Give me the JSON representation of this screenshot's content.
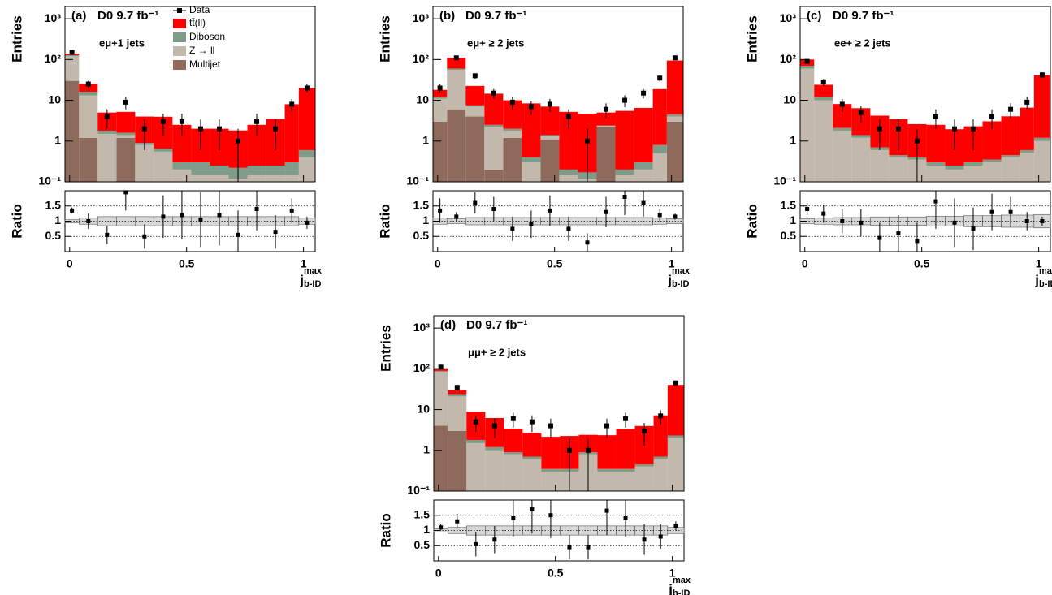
{
  "series_styles": [
    {
      "name": "Multijet",
      "color": "#8d6a5b"
    },
    {
      "name": "Z → ll",
      "color": "#c2b8ab"
    },
    {
      "name": "Diboson",
      "color": "#7f9c8a"
    },
    {
      "name": "tt̄(ll)",
      "color": "#ff0000"
    }
  ],
  "data_label": "Data",
  "chart_data": [
    {
      "type": "stacked_histogram",
      "panel_label": "(a)",
      "title": "D0 9.7 fb⁻¹",
      "channel": "eμ+1 jets",
      "legend": true,
      "ylabel": "Entries",
      "ratio_ylabel": "Ratio",
      "xlabel": {
        "base": "j",
        "sup": "max",
        "sub": "b-ID"
      },
      "log_y": true,
      "xlim": [
        -0.02,
        1.05
      ],
      "xticks": [
        0,
        0.5,
        1
      ],
      "ylim": [
        0.1,
        2000
      ],
      "yticks": [
        {
          "value": 0.1,
          "label": "10⁻¹"
        },
        1,
        10,
        {
          "value": 100,
          "label": "10²"
        },
        {
          "value": 1000,
          "label": "10³"
        }
      ],
      "ratio_ylim": [
        0,
        2
      ],
      "ratio_yticks": [
        0.5,
        1,
        1.5
      ],
      "bins": [
        -0.02,
        0.04,
        0.12,
        0.2,
        0.28,
        0.36,
        0.44,
        0.52,
        0.6,
        0.68,
        0.76,
        0.84,
        0.92,
        0.98,
        1.05
      ],
      "stacks": [
        {
          "values": [
            30,
            1.2,
            0,
            1.2,
            0,
            0,
            0,
            0,
            0,
            0,
            0,
            0,
            0,
            0
          ]
        },
        {
          "values": [
            90,
            12,
            1.5,
            0.2,
            0.8,
            0.55,
            0.2,
            0.15,
            0.15,
            0.12,
            0.15,
            0.15,
            0.15,
            0.4
          ]
        },
        {
          "values": [
            8,
            3,
            0.3,
            0.2,
            0.1,
            0.1,
            0.1,
            0.15,
            0.1,
            0.1,
            0.1,
            0.1,
            0.15,
            0.2
          ]
        },
        {
          "values": [
            12,
            9,
            3.2,
            3.6,
            3.1,
            3.3,
            2.2,
            1.7,
            1.75,
            1.6,
            2.25,
            3.25,
            7.7,
            19.4
          ]
        }
      ],
      "data": [
        150,
        25,
        4,
        9,
        2,
        3,
        3,
        2,
        2,
        1,
        3,
        2,
        8,
        20
      ],
      "data_errors": [
        12,
        5,
        2,
        3,
        1.4,
        1.7,
        1.7,
        1.4,
        1.4,
        1,
        1.7,
        1.4,
        2.8,
        4.5
      ],
      "ratio": [
        1.35,
        1.0,
        0.55,
        1.95,
        0.5,
        1.15,
        1.2,
        1.05,
        1.2,
        0.55,
        1.4,
        0.65,
        1.35,
        0.95
      ],
      "ratio_errors": [
        0.1,
        0.25,
        0.3,
        0.6,
        0.4,
        0.7,
        0.8,
        0.9,
        1.0,
        0.8,
        0.7,
        0.55,
        0.4,
        0.2
      ],
      "ratio_band": [
        0.05,
        0.1,
        0.15,
        0.15,
        0.15,
        0.15,
        0.15,
        0.15,
        0.15,
        0.15,
        0.15,
        0.15,
        0.15,
        0.1
      ]
    },
    {
      "type": "stacked_histogram",
      "panel_label": "(b)",
      "title": "D0 9.7 fb⁻¹",
      "channel": "eμ+ ≥ 2 jets",
      "ylabel": "Entries",
      "ratio_ylabel": "Ratio",
      "xlabel": {
        "base": "j",
        "sup": "max",
        "sub": "b-ID"
      },
      "log_y": true,
      "xlim": [
        -0.02,
        1.05
      ],
      "xticks": [
        0,
        0.5,
        1
      ],
      "ylim": [
        0.1,
        2000
      ],
      "yticks": [
        {
          "value": 0.1,
          "label": "10⁻¹"
        },
        1,
        10,
        {
          "value": 100,
          "label": "10²"
        },
        {
          "value": 1000,
          "label": "10³"
        }
      ],
      "ratio_ylim": [
        0,
        2
      ],
      "ratio_yticks": [
        0.5,
        1,
        1.5
      ],
      "bins": [
        -0.02,
        0.04,
        0.12,
        0.2,
        0.28,
        0.36,
        0.44,
        0.52,
        0.6,
        0.68,
        0.76,
        0.84,
        0.92,
        0.98,
        1.05
      ],
      "stacks": [
        {
          "values": [
            3,
            6,
            4,
            0.2,
            1.2,
            0,
            1.1,
            0,
            0,
            2.2,
            0,
            0,
            0,
            3
          ]
        },
        {
          "values": [
            8,
            50,
            3,
            2,
            0.6,
            0.3,
            0.2,
            0.15,
            0.12,
            0.15,
            0.15,
            0.2,
            0.5,
            1
          ]
        },
        {
          "values": [
            1,
            4,
            0.5,
            0.3,
            0.2,
            0.1,
            0.1,
            0.05,
            0.05,
            0.05,
            0.05,
            0.1,
            0.3,
            0.5
          ]
        },
        {
          "values": [
            6,
            50,
            15,
            12,
            8,
            8,
            5.6,
            5,
            4.5,
            2.6,
            5.3,
            6.2,
            18,
            90
          ]
        }
      ],
      "data": [
        20,
        110,
        40,
        15,
        9,
        7,
        8,
        4,
        1,
        6,
        10,
        15,
        35,
        110
      ],
      "data_errors": [
        4.5,
        10,
        6,
        4,
        3,
        2.6,
        2.8,
        2,
        1,
        2.4,
        3.2,
        3.9,
        6,
        10
      ],
      "ratio": [
        1.35,
        1.15,
        1.6,
        1.4,
        0.75,
        0.9,
        1.35,
        0.75,
        0.3,
        1.3,
        1.8,
        1.6,
        1.2,
        1.15
      ],
      "ratio_errors": [
        0.4,
        0.15,
        0.35,
        0.4,
        0.4,
        0.45,
        0.5,
        0.4,
        0.3,
        0.5,
        0.6,
        0.45,
        0.2,
        0.1
      ],
      "ratio_band": [
        0.1,
        0.08,
        0.12,
        0.12,
        0.12,
        0.12,
        0.12,
        0.12,
        0.12,
        0.12,
        0.12,
        0.12,
        0.1,
        0.08
      ]
    },
    {
      "type": "stacked_histogram",
      "panel_label": "(c)",
      "title": "D0 9.7 fb⁻¹",
      "channel": "ee+ ≥ 2 jets",
      "ylabel": "Entries",
      "ratio_ylabel": "Ratio",
      "xlabel": {
        "base": "j",
        "sup": "max",
        "sub": "b-ID"
      },
      "log_y": true,
      "xlim": [
        -0.02,
        1.05
      ],
      "xticks": [
        0,
        0.5,
        1
      ],
      "ylim": [
        0.1,
        2000
      ],
      "yticks": [
        {
          "value": 0.1,
          "label": "10⁻¹"
        },
        1,
        10,
        {
          "value": 100,
          "label": "10²"
        },
        {
          "value": 1000,
          "label": "10³"
        }
      ],
      "ratio_ylim": [
        0,
        2
      ],
      "ratio_yticks": [
        0.5,
        1,
        1.5
      ],
      "bins": [
        -0.02,
        0.04,
        0.12,
        0.2,
        0.28,
        0.36,
        0.44,
        0.52,
        0.6,
        0.68,
        0.76,
        0.84,
        0.92,
        0.98,
        1.05
      ],
      "stacks": [
        {
          "values": [
            0,
            0,
            0,
            0,
            0,
            0,
            0,
            0,
            0,
            0,
            0,
            0,
            0,
            0
          ]
        },
        {
          "values": [
            60,
            10,
            1.8,
            1.2,
            0.6,
            0.4,
            0.35,
            0.25,
            0.2,
            0.25,
            0.3,
            0.4,
            0.5,
            1
          ]
        },
        {
          "values": [
            10,
            2,
            0.3,
            0.2,
            0.1,
            0.05,
            0.05,
            0.05,
            0.05,
            0.05,
            0.05,
            0.05,
            0.1,
            0.2
          ]
        },
        {
          "values": [
            30,
            12,
            6,
            5,
            3.5,
            3,
            2.2,
            2.2,
            1.7,
            2,
            2.7,
            3.6,
            6,
            40
          ]
        }
      ],
      "data": [
        90,
        28,
        8,
        5,
        2,
        2,
        1,
        4,
        2,
        2,
        4,
        6,
        9,
        42
      ],
      "data_errors": [
        9.5,
        5.3,
        2.8,
        2.2,
        1.4,
        1.4,
        1,
        2,
        1.4,
        1.4,
        2,
        2.4,
        3,
        6.5
      ],
      "ratio": [
        1.4,
        1.25,
        1.0,
        0.95,
        0.45,
        0.6,
        0.35,
        1.65,
        0.95,
        0.75,
        1.3,
        1.3,
        1.0,
        1.0
      ],
      "ratio_errors": [
        0.2,
        0.3,
        0.4,
        0.45,
        0.5,
        0.6,
        0.6,
        0.9,
        0.8,
        0.7,
        0.6,
        0.5,
        0.3,
        0.15
      ],
      "ratio_band": [
        0.08,
        0.1,
        0.12,
        0.12,
        0.14,
        0.14,
        0.14,
        0.16,
        0.16,
        0.18,
        0.18,
        0.2,
        0.2,
        0.22
      ]
    },
    {
      "type": "stacked_histogram",
      "panel_label": "(d)",
      "title": "D0 9.7 fb⁻¹",
      "channel": "μμ+ ≥ 2 jets",
      "ylabel": "Entries",
      "ratio_ylabel": "Ratio",
      "xlabel": {
        "base": "j",
        "sup": "max",
        "sub": "b-ID"
      },
      "log_y": true,
      "xlim": [
        -0.02,
        1.05
      ],
      "xticks": [
        0,
        0.5,
        1
      ],
      "ylim": [
        0.1,
        2000
      ],
      "yticks": [
        {
          "value": 0.1,
          "label": "10⁻¹"
        },
        1,
        10,
        {
          "value": 100,
          "label": "10²"
        },
        {
          "value": 1000,
          "label": "10³"
        }
      ],
      "ratio_ylim": [
        0,
        2
      ],
      "ratio_yticks": [
        0.5,
        1,
        1.5
      ],
      "bins": [
        -0.02,
        0.04,
        0.12,
        0.2,
        0.28,
        0.36,
        0.44,
        0.52,
        0.6,
        0.68,
        0.76,
        0.84,
        0.92,
        0.98,
        1.05
      ],
      "stacks": [
        {
          "values": [
            4,
            3,
            0,
            0,
            0,
            0,
            0,
            0,
            0,
            0,
            0,
            0,
            0,
            0
          ]
        },
        {
          "values": [
            80,
            18,
            1.5,
            1,
            0.8,
            0.6,
            0.3,
            0.3,
            0.8,
            0.3,
            0.3,
            0.4,
            0.6,
            2
          ]
        },
        {
          "values": [
            5,
            3,
            0.3,
            0.2,
            0.1,
            0.1,
            0.05,
            0.05,
            0.1,
            0.05,
            0.05,
            0.05,
            0.1,
            0.3
          ]
        },
        {
          "values": [
            14,
            6,
            7,
            5,
            2.5,
            2,
            1.8,
            1.9,
            1.5,
            2,
            3,
            3.5,
            6.5,
            38
          ]
        }
      ],
      "data": [
        110,
        35,
        5,
        4,
        6,
        5,
        4,
        1,
        1,
        4,
        6,
        3,
        7,
        45
      ],
      "data_errors": [
        10.5,
        6,
        2.2,
        2,
        2.4,
        2.2,
        2,
        1,
        1,
        2,
        2.4,
        1.7,
        2.6,
        6.7
      ],
      "ratio": [
        1.1,
        1.3,
        0.55,
        0.7,
        1.4,
        1.7,
        1.5,
        0.45,
        0.45,
        1.65,
        1.4,
        0.7,
        0.8,
        1.15
      ],
      "ratio_errors": [
        0.1,
        0.25,
        0.4,
        0.45,
        0.6,
        0.8,
        0.75,
        0.4,
        0.4,
        0.8,
        0.6,
        0.5,
        0.4,
        0.15
      ],
      "ratio_band": [
        0.05,
        0.1,
        0.15,
        0.15,
        0.15,
        0.15,
        0.15,
        0.15,
        0.15,
        0.15,
        0.15,
        0.15,
        0.15,
        0.1
      ]
    }
  ]
}
